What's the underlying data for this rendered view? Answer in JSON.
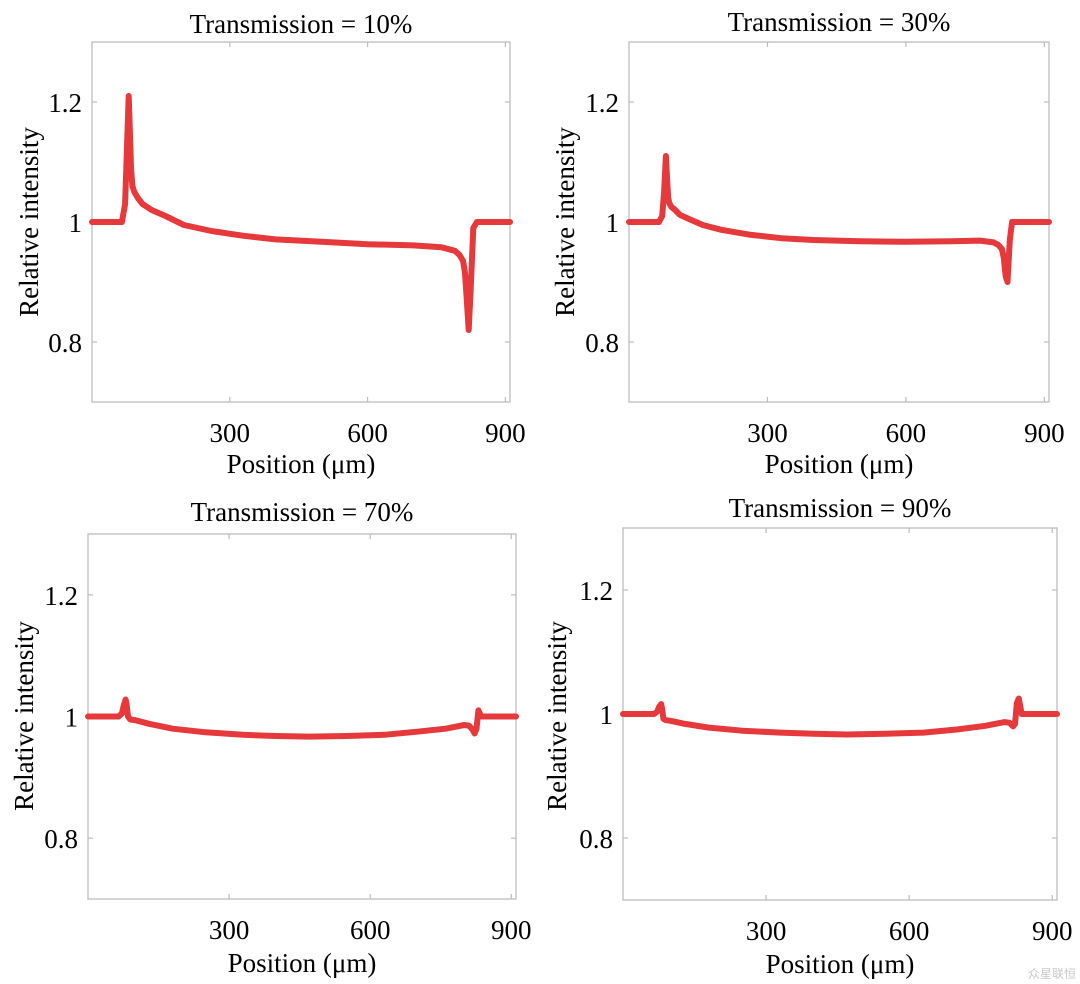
{
  "watermark": "众星联恒",
  "line_color": "#e5393b",
  "chart_data": [
    {
      "type": "line",
      "title": "Transmission = 10%",
      "xlabel": "Position (μm)",
      "ylabel": "Relative intensity",
      "xlim": [
        0,
        910
      ],
      "ylim": [
        0.7,
        1.3
      ],
      "xticks": [
        300,
        600,
        900
      ],
      "xtick_labels": [
        "300",
        "600",
        "900"
      ],
      "yticks": [
        0.8,
        1,
        1.2
      ],
      "ytick_labels": [
        "0.8",
        "1",
        "1.2"
      ],
      "series": [
        {
          "name": "Relative intensity",
          "x": [
            0,
            65,
            72,
            76,
            80,
            82,
            85,
            88,
            92,
            100,
            110,
            130,
            160,
            200,
            260,
            330,
            400,
            500,
            600,
            700,
            760,
            790,
            800,
            808,
            812,
            816,
            820,
            825,
            830,
            838,
            845,
            910
          ],
          "y": [
            1.0,
            1.0,
            1.03,
            1.12,
            1.21,
            1.16,
            1.09,
            1.06,
            1.05,
            1.04,
            1.03,
            1.02,
            1.01,
            0.995,
            0.985,
            0.977,
            0.971,
            0.967,
            0.963,
            0.961,
            0.958,
            0.952,
            0.945,
            0.935,
            0.915,
            0.87,
            0.82,
            0.9,
            0.99,
            1.0,
            1.0,
            1.0
          ]
        }
      ]
    },
    {
      "type": "line",
      "title": "Transmission = 30%",
      "xlabel": "Position (μm)",
      "ylabel": "Relative intensity",
      "xlim": [
        0,
        910
      ],
      "ylim": [
        0.7,
        1.3
      ],
      "xticks": [
        300,
        600,
        900
      ],
      "xtick_labels": [
        "300",
        "600",
        "900"
      ],
      "yticks": [
        0.8,
        1,
        1.2
      ],
      "ytick_labels": [
        "0.8",
        "1",
        "1.2"
      ],
      "series": [
        {
          "name": "Relative intensity",
          "x": [
            0,
            65,
            72,
            76,
            80,
            82,
            85,
            88,
            92,
            100,
            110,
            130,
            160,
            200,
            260,
            330,
            400,
            500,
            600,
            700,
            760,
            790,
            800,
            808,
            812,
            816,
            820,
            825,
            830,
            838,
            845,
            910
          ],
          "y": [
            1.0,
            1.0,
            1.01,
            1.05,
            1.11,
            1.08,
            1.04,
            1.03,
            1.025,
            1.02,
            1.012,
            1.005,
            0.995,
            0.987,
            0.979,
            0.973,
            0.97,
            0.968,
            0.967,
            0.968,
            0.969,
            0.966,
            0.962,
            0.955,
            0.94,
            0.91,
            0.9,
            0.97,
            1.0,
            1.0,
            1.0,
            1.0
          ]
        }
      ]
    },
    {
      "type": "line",
      "title": "Transmission = 70%",
      "xlabel": "Position (μm)",
      "ylabel": "Relative intensity",
      "xlim": [
        0,
        910
      ],
      "ylim": [
        0.7,
        1.3
      ],
      "xticks": [
        300,
        600,
        900
      ],
      "xtick_labels": [
        "300",
        "600",
        "900"
      ],
      "yticks": [
        0.8,
        1,
        1.2
      ],
      "ytick_labels": [
        "0.8",
        "1",
        "1.2"
      ],
      "series": [
        {
          "name": "Relative intensity",
          "x": [
            0,
            65,
            72,
            76,
            80,
            82,
            85,
            90,
            100,
            130,
            180,
            250,
            330,
            400,
            470,
            550,
            630,
            700,
            760,
            800,
            810,
            818,
            822,
            826,
            830,
            836,
            845,
            910
          ],
          "y": [
            1.0,
            1.0,
            1.005,
            1.018,
            1.028,
            1.02,
            1.0,
            0.995,
            0.994,
            0.988,
            0.98,
            0.974,
            0.97,
            0.968,
            0.967,
            0.968,
            0.97,
            0.975,
            0.98,
            0.986,
            0.985,
            0.978,
            0.972,
            0.98,
            1.01,
            1.0,
            1.0,
            1.0
          ]
        }
      ]
    },
    {
      "type": "line",
      "title": "Transmission = 90%",
      "xlabel": "Position (μm)",
      "ylabel": "Relative intensity",
      "xlim": [
        0,
        910
      ],
      "ylim": [
        0.7,
        1.3
      ],
      "xticks": [
        300,
        600,
        900
      ],
      "xtick_labels": [
        "300",
        "600",
        "900"
      ],
      "yticks": [
        0.8,
        1,
        1.2
      ],
      "ytick_labels": [
        "0.8",
        "1",
        "1.2"
      ],
      "series": [
        {
          "name": "Relative intensity",
          "x": [
            0,
            65,
            72,
            76,
            80,
            82,
            85,
            90,
            100,
            130,
            180,
            250,
            330,
            400,
            470,
            550,
            630,
            700,
            760,
            800,
            810,
            818,
            822,
            826,
            830,
            836,
            845,
            910
          ],
          "y": [
            1.0,
            1.0,
            1.004,
            1.012,
            1.016,
            1.008,
            0.992,
            0.99,
            0.989,
            0.984,
            0.978,
            0.973,
            0.97,
            0.968,
            0.967,
            0.968,
            0.97,
            0.975,
            0.981,
            0.987,
            0.986,
            0.98,
            0.984,
            1.018,
            1.025,
            1.0,
            1.0,
            1.0
          ]
        }
      ]
    }
  ]
}
